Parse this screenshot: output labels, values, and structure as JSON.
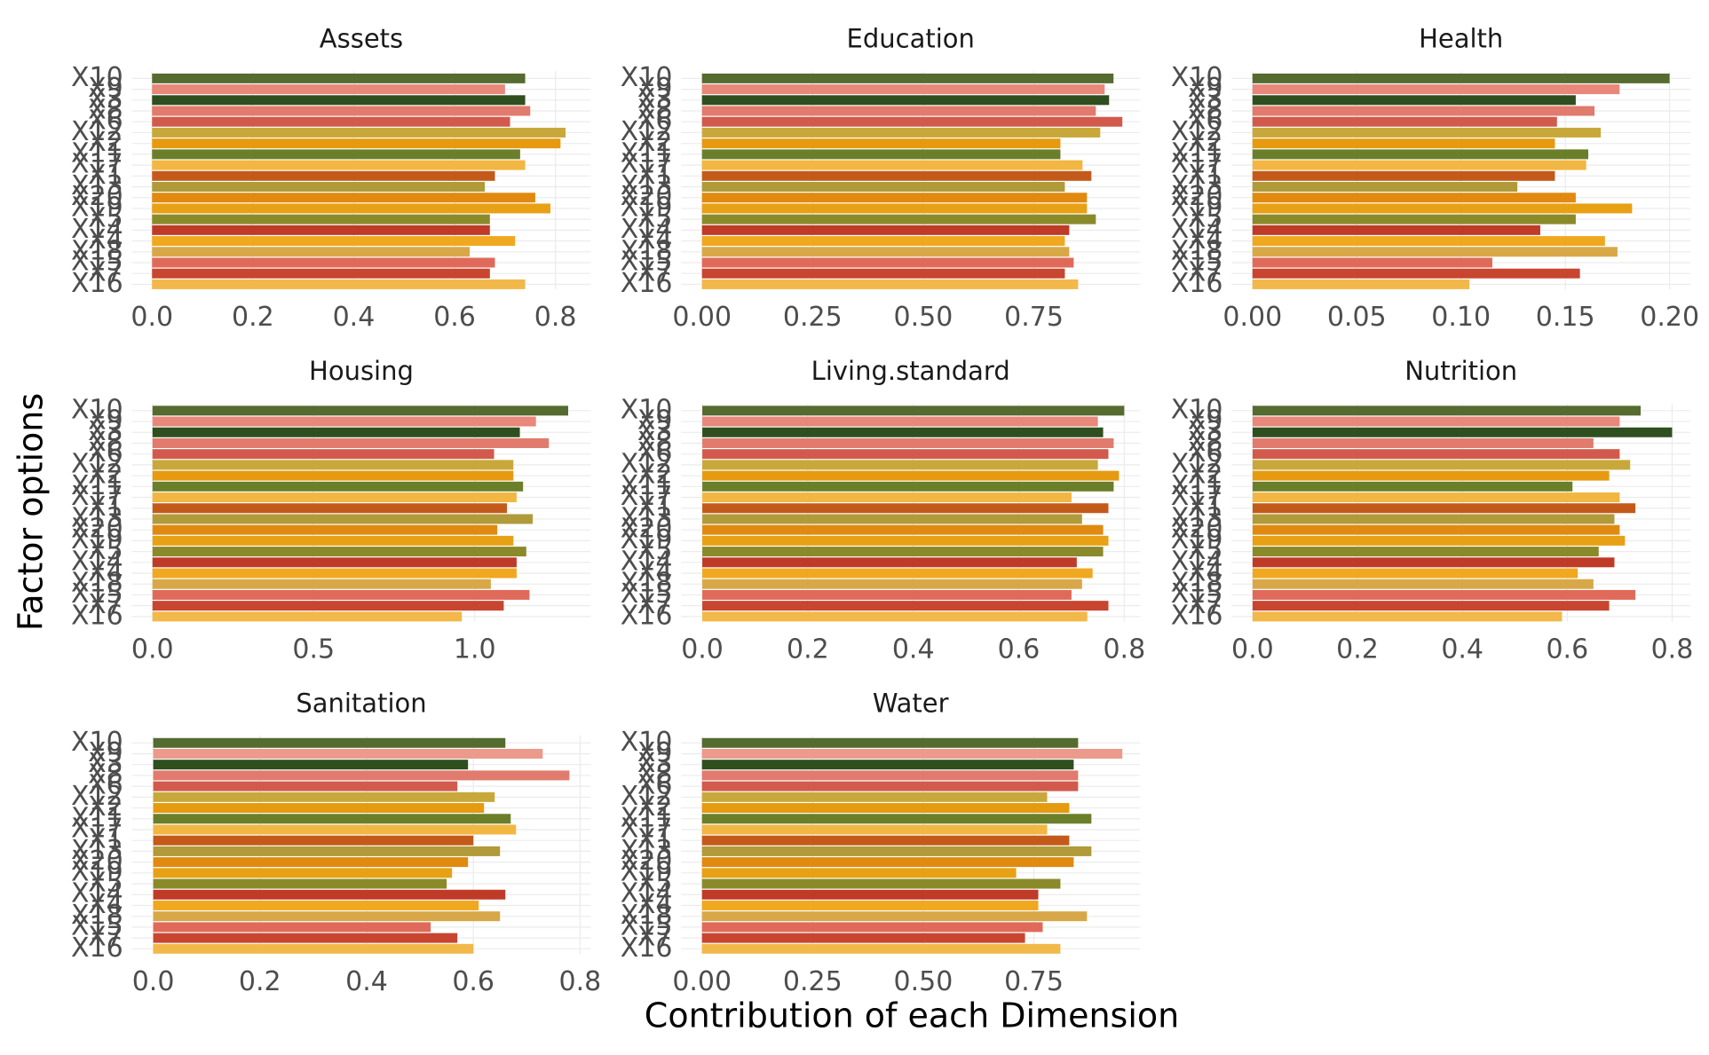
{
  "x_label": "Contribution of each Dimension",
  "y_label": "Factor options",
  "chart_data": [
    {
      "type": "bar",
      "title": "Assets",
      "categories": [
        "X10",
        "X9",
        "X3",
        "X8",
        "X6",
        "X12",
        "X2",
        "X11",
        "X17",
        "X1",
        "X13",
        "X20",
        "X19",
        "X5",
        "X14",
        "X4",
        "X18",
        "X15",
        "X7",
        "X16"
      ],
      "colors": [
        "#556b2f",
        "#e8877a",
        "#2f4f1f",
        "#e07b6e",
        "#d25a4c",
        "#c8a83a",
        "#e69a10",
        "#6b7f2a",
        "#f2b642",
        "#c45a1a",
        "#b09a3a",
        "#e08a10",
        "#e8a015",
        "#8a8a2a",
        "#c03a28",
        "#f0a820",
        "#d8a848",
        "#e06a5a",
        "#c84530",
        "#f2b84a"
      ],
      "values": [
        0.74,
        0.7,
        0.74,
        0.75,
        0.71,
        0.82,
        0.81,
        0.73,
        0.74,
        0.68,
        0.66,
        0.76,
        0.79,
        0.67,
        0.67,
        0.72,
        0.63,
        0.68,
        0.67,
        0.74
      ],
      "xlim": [
        -0.04,
        0.87
      ],
      "xticks": [
        {
          "value": 0,
          "label": "0.0"
        },
        0.2,
        0.4,
        0.6,
        0.8
      ]
    },
    {
      "type": "bar",
      "title": "Education",
      "categories": [
        "X10",
        "X9",
        "X3",
        "X8",
        "X6",
        "X12",
        "X2",
        "X11",
        "X17",
        "X1",
        "X13",
        "X20",
        "X19",
        "X5",
        "X14",
        "X4",
        "X18",
        "X15",
        "X7",
        "X16"
      ],
      "colors": [
        "#556b2f",
        "#e8877a",
        "#2f4f1f",
        "#e07b6e",
        "#d25a4c",
        "#c8a83a",
        "#e69a10",
        "#6b7f2a",
        "#f2b642",
        "#c45a1a",
        "#b09a3a",
        "#e08a10",
        "#e8a015",
        "#8a8a2a",
        "#c03a28",
        "#f0a820",
        "#d8a848",
        "#e06a5a",
        "#c84530",
        "#f2b84a"
      ],
      "values": [
        0.93,
        0.91,
        0.92,
        0.89,
        0.95,
        0.9,
        0.81,
        0.81,
        0.86,
        0.88,
        0.82,
        0.87,
        0.87,
        0.89,
        0.83,
        0.82,
        0.83,
        0.84,
        0.82,
        0.85
      ],
      "xlim": [
        -0.047,
        0.99
      ],
      "xticks": [
        {
          "value": 0,
          "label": "0.00"
        },
        0.25,
        {
          "value": 0.5,
          "label": "0.50"
        },
        0.75
      ]
    },
    {
      "type": "bar",
      "title": "Health",
      "categories": [
        "X10",
        "X9",
        "X3",
        "X8",
        "X6",
        "X12",
        "X2",
        "X11",
        "X17",
        "X1",
        "X13",
        "X20",
        "X19",
        "X5",
        "X14",
        "X4",
        "X18",
        "X15",
        "X7",
        "X16"
      ],
      "colors": [
        "#556b2f",
        "#e8877a",
        "#2f4f1f",
        "#e07b6e",
        "#d25a4c",
        "#c8a83a",
        "#e69a10",
        "#6b7f2a",
        "#f2b642",
        "#c45a1a",
        "#b09a3a",
        "#e08a10",
        "#e8a015",
        "#8a8a2a",
        "#c03a28",
        "#f0a820",
        "#d8a848",
        "#e06a5a",
        "#c84530",
        "#f2b84a"
      ],
      "values": [
        0.2,
        0.176,
        0.155,
        0.164,
        0.146,
        0.167,
        0.145,
        0.161,
        0.16,
        0.145,
        0.127,
        0.155,
        0.182,
        0.155,
        0.138,
        0.169,
        0.175,
        0.115,
        0.157,
        0.104
      ],
      "xlim": [
        -0.01,
        0.21
      ],
      "xticks": [
        {
          "value": 0,
          "label": "0.00"
        },
        0.05,
        {
          "value": 0.1,
          "label": "0.10"
        },
        0.15,
        {
          "value": 0.2,
          "label": "0.20"
        }
      ]
    },
    {
      "type": "bar",
      "title": "Housing",
      "categories": [
        "X10",
        "X9",
        "X3",
        "X8",
        "X6",
        "X12",
        "X2",
        "X11",
        "X17",
        "X1",
        "X13",
        "X20",
        "X19",
        "X5",
        "X14",
        "X4",
        "X18",
        "X15",
        "X7",
        "X16"
      ],
      "colors": [
        "#556b2f",
        "#e8877a",
        "#2f4f1f",
        "#e07b6e",
        "#d25a4c",
        "#c8a83a",
        "#e69a10",
        "#6b7f2a",
        "#f2b642",
        "#c45a1a",
        "#b09a3a",
        "#e08a10",
        "#e8a015",
        "#8a8a2a",
        "#c03a28",
        "#f0a820",
        "#d8a848",
        "#e06a5a",
        "#c84530",
        "#f2b84a"
      ],
      "values": [
        1.29,
        1.19,
        1.14,
        1.23,
        1.06,
        1.12,
        1.12,
        1.15,
        1.13,
        1.1,
        1.18,
        1.07,
        1.12,
        1.16,
        1.13,
        1.13,
        1.05,
        1.17,
        1.09,
        0.96
      ],
      "xlim": [
        -0.064,
        1.36
      ],
      "xticks": [
        {
          "value": 0,
          "label": "0.0"
        },
        0.5,
        {
          "value": 1,
          "label": "1.0"
        }
      ]
    },
    {
      "type": "bar",
      "title": "Living.standard",
      "categories": [
        "X10",
        "X9",
        "X3",
        "X8",
        "X6",
        "X12",
        "X2",
        "X11",
        "X17",
        "X1",
        "X13",
        "X20",
        "X19",
        "X5",
        "X14",
        "X4",
        "X18",
        "X15",
        "X7",
        "X16"
      ],
      "colors": [
        "#556b2f",
        "#e8877a",
        "#2f4f1f",
        "#e07b6e",
        "#d25a4c",
        "#c8a83a",
        "#e69a10",
        "#6b7f2a",
        "#f2b642",
        "#c45a1a",
        "#b09a3a",
        "#e08a10",
        "#e8a015",
        "#8a8a2a",
        "#c03a28",
        "#f0a820",
        "#d8a848",
        "#e06a5a",
        "#c84530",
        "#f2b84a"
      ],
      "values": [
        0.8,
        0.75,
        0.76,
        0.78,
        0.77,
        0.75,
        0.79,
        0.78,
        0.7,
        0.77,
        0.72,
        0.76,
        0.77,
        0.76,
        0.71,
        0.74,
        0.72,
        0.7,
        0.77,
        0.73
      ],
      "xlim": [
        -0.04,
        0.83
      ],
      "xticks": [
        {
          "value": 0,
          "label": "0.0"
        },
        0.2,
        0.4,
        0.6,
        0.8
      ]
    },
    {
      "type": "bar",
      "title": "Nutrition",
      "categories": [
        "X10",
        "X9",
        "X3",
        "X8",
        "X6",
        "X12",
        "X2",
        "X11",
        "X17",
        "X1",
        "X13",
        "X20",
        "X19",
        "X5",
        "X14",
        "X4",
        "X18",
        "X15",
        "X7",
        "X16"
      ],
      "colors": [
        "#556b2f",
        "#e8877a",
        "#2f4f1f",
        "#e07b6e",
        "#d25a4c",
        "#c8a83a",
        "#e69a10",
        "#6b7f2a",
        "#f2b642",
        "#c45a1a",
        "#b09a3a",
        "#e08a10",
        "#e8a015",
        "#8a8a2a",
        "#c03a28",
        "#f0a820",
        "#d8a848",
        "#e06a5a",
        "#c84530",
        "#f2b84a"
      ],
      "values": [
        0.74,
        0.7,
        0.8,
        0.65,
        0.7,
        0.72,
        0.68,
        0.61,
        0.7,
        0.73,
        0.69,
        0.7,
        0.71,
        0.66,
        0.69,
        0.62,
        0.65,
        0.73,
        0.68,
        0.59
      ],
      "xlim": [
        -0.04,
        0.835
      ],
      "xticks": [
        {
          "value": 0,
          "label": "0.0"
        },
        0.2,
        0.4,
        0.6,
        0.8
      ]
    },
    {
      "type": "bar",
      "title": "Sanitation",
      "categories": [
        "X10",
        "X9",
        "X3",
        "X8",
        "X6",
        "X12",
        "X2",
        "X11",
        "X17",
        "X1",
        "X13",
        "X20",
        "X19",
        "X5",
        "X14",
        "X4",
        "X18",
        "X15",
        "X7",
        "X16"
      ],
      "colors": [
        "#556b2f",
        "#eb9a8c",
        "#2f4f1f",
        "#e07b6e",
        "#d25a4c",
        "#c8a83a",
        "#e69a10",
        "#6b7f2a",
        "#f2b642",
        "#c45a1a",
        "#b09a3a",
        "#e08a10",
        "#e8a015",
        "#8a8a2a",
        "#c03a28",
        "#f0a820",
        "#d8a848",
        "#e06a5a",
        "#c84530",
        "#f2b84a"
      ],
      "values": [
        0.66,
        0.73,
        0.59,
        0.78,
        0.57,
        0.64,
        0.62,
        0.67,
        0.68,
        0.6,
        0.65,
        0.59,
        0.56,
        0.55,
        0.66,
        0.61,
        0.65,
        0.52,
        0.57,
        0.6
      ],
      "xlim": [
        -0.04,
        0.82
      ],
      "xticks": [
        {
          "value": 0,
          "label": "0.0"
        },
        0.2,
        0.4,
        0.6,
        0.8
      ]
    },
    {
      "type": "bar",
      "title": "Water",
      "categories": [
        "X10",
        "X9",
        "X3",
        "X8",
        "X6",
        "X12",
        "X2",
        "X11",
        "X17",
        "X1",
        "X13",
        "X20",
        "X19",
        "X5",
        "X14",
        "X4",
        "X18",
        "X15",
        "X7",
        "X16"
      ],
      "colors": [
        "#556b2f",
        "#eb9a8c",
        "#2f4f1f",
        "#e07b6e",
        "#d25a4c",
        "#c8a83a",
        "#e69a10",
        "#6b7f2a",
        "#f2b642",
        "#c45a1a",
        "#b09a3a",
        "#e08a10",
        "#e8a015",
        "#8a8a2a",
        "#c03a28",
        "#f0a820",
        "#d8a848",
        "#e06a5a",
        "#c84530",
        "#f2b84a"
      ],
      "values": [
        0.85,
        0.95,
        0.84,
        0.85,
        0.85,
        0.78,
        0.83,
        0.88,
        0.78,
        0.83,
        0.88,
        0.84,
        0.71,
        0.81,
        0.76,
        0.76,
        0.87,
        0.77,
        0.73,
        0.81
      ],
      "xlim": [
        -0.047,
        0.99
      ],
      "xticks": [
        {
          "value": 0,
          "label": "0.00"
        },
        0.25,
        {
          "value": 0.5,
          "label": "0.50"
        },
        0.75
      ]
    }
  ]
}
